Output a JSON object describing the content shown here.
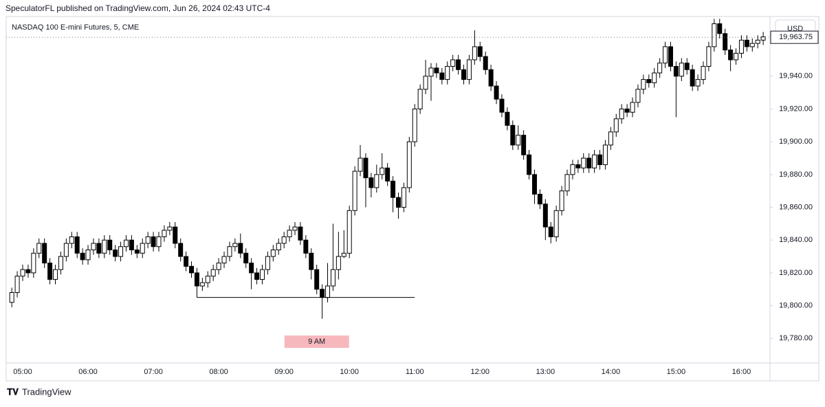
{
  "header": {
    "published": "SpeculatorFL published on TradingView.com, Jun 26, 2024 02:43 UTC-4",
    "brand": "TradingView"
  },
  "chart_data": {
    "type": "candlestick",
    "title": "NASDAQ 100 E-mini Futures, 5, CME",
    "currency": "USD",
    "categories": [
      null,
      null,
      "05:00",
      null,
      null,
      null,
      null,
      null,
      null,
      null,
      null,
      null,
      null,
      null,
      "06:00",
      null,
      null,
      null,
      null,
      null,
      null,
      null,
      null,
      null,
      null,
      null,
      "07:00",
      null,
      null,
      null,
      null,
      null,
      null,
      null,
      null,
      null,
      null,
      null,
      "08:00",
      null,
      null,
      null,
      null,
      null,
      null,
      null,
      null,
      null,
      null,
      null,
      "09:00",
      null,
      null,
      null,
      null,
      null,
      null,
      null,
      null,
      null,
      null,
      null,
      "10:00",
      null,
      null,
      null,
      null,
      null,
      null,
      null,
      null,
      null,
      null,
      null,
      "11:00",
      null,
      null,
      null,
      null,
      null,
      null,
      null,
      null,
      null,
      null,
      null,
      "12:00",
      null,
      null,
      null,
      null,
      null,
      null,
      null,
      null,
      null,
      null,
      null,
      "13:00",
      null,
      null,
      null,
      null,
      null,
      null,
      null,
      null,
      null,
      null,
      null,
      "14:00",
      null,
      null,
      null,
      null,
      null,
      null,
      null,
      null,
      null,
      null,
      null,
      "15:00",
      null,
      null,
      null,
      null,
      null,
      null,
      null,
      null,
      null,
      null,
      null,
      "16:00",
      null,
      null,
      null,
      null
    ],
    "open": [
      19802,
      19808,
      19818,
      19822,
      19820,
      19832,
      19838,
      19826,
      19816,
      19822,
      19830,
      19838,
      19842,
      19832,
      19828,
      19834,
      19838,
      19832,
      19840,
      19834,
      19830,
      19836,
      19840,
      19834,
      19832,
      19838,
      19842,
      19836,
      19842,
      19846,
      19848,
      19838,
      19830,
      19824,
      19820,
      19812,
      19814,
      19818,
      19822,
      19826,
      19830,
      19836,
      19838,
      19832,
      19826,
      19820,
      19816,
      19822,
      19830,
      19834,
      19838,
      19842,
      19846,
      19848,
      19840,
      19832,
      19822,
      19810,
      19805,
      19812,
      19822,
      19830,
      19832,
      19858,
      19882,
      19890,
      19878,
      19872,
      19880,
      19884,
      19876,
      19866,
      19860,
      19872,
      19900,
      19920,
      19932,
      19940,
      19945,
      19942,
      19938,
      19946,
      19950,
      19944,
      19938,
      19950,
      19958,
      19952,
      19944,
      19934,
      19926,
      19918,
      19910,
      19898,
      19904,
      19892,
      19880,
      19868,
      19862,
      19848,
      19842,
      19858,
      19870,
      19880,
      19886,
      19884,
      19890,
      19884,
      19892,
      19886,
      19898,
      19906,
      19914,
      19920,
      19918,
      19924,
      19932,
      19938,
      19936,
      19942,
      19948,
      19958,
      19946,
      19940,
      19948,
      19944,
      19934,
      19938,
      19946,
      19958,
      19972,
      19966,
      19956,
      19950,
      19954,
      19962,
      19958,
      19960,
      19962
    ],
    "high": [
      19811,
      19821,
      19825,
      19825,
      19835,
      19841,
      19841,
      19829,
      19825,
      19833,
      19841,
      19845,
      19845,
      19835,
      19837,
      19841,
      19841,
      19843,
      19843,
      19837,
      19839,
      19843,
      19843,
      19837,
      19841,
      19845,
      19845,
      19845,
      19849,
      19851,
      19851,
      19841,
      19833,
      19827,
      19823,
      19817,
      19821,
      19825,
      19829,
      19833,
      19839,
      19841,
      19844,
      19835,
      19829,
      19823,
      19825,
      19833,
      19837,
      19841,
      19845,
      19849,
      19851,
      19851,
      19843,
      19835,
      19825,
      19813,
      19826,
      19850,
      19845,
      19846,
      19861,
      19885,
      19898,
      19893,
      19881,
      19886,
      19893,
      19887,
      19879,
      19869,
      19875,
      19903,
      19923,
      19935,
      19950,
      19948,
      19948,
      19945,
      19949,
      19953,
      19953,
      19947,
      19953,
      19968,
      19961,
      19955,
      19947,
      19937,
      19929,
      19921,
      19913,
      19910,
      19907,
      19895,
      19883,
      19871,
      19865,
      19851,
      19861,
      19873,
      19883,
      19889,
      19889,
      19893,
      19893,
      19895,
      19895,
      19901,
      19909,
      19917,
      19923,
      19923,
      19927,
      19935,
      19941,
      19941,
      19945,
      19951,
      19961,
      19961,
      19949,
      19951,
      19951,
      19947,
      19941,
      19949,
      19961,
      19975,
      19975,
      19969,
      19959,
      19957,
      19965,
      19965,
      19963,
      19965,
      19967
    ],
    "low": [
      19799,
      19805,
      19815,
      19817,
      19817,
      19829,
      19823,
      19813,
      19813,
      19819,
      19827,
      19835,
      19829,
      19825,
      19825,
      19831,
      19829,
      19829,
      19831,
      19827,
      19827,
      19833,
      19831,
      19829,
      19829,
      19835,
      19833,
      19833,
      19839,
      19843,
      19835,
      19827,
      19821,
      19817,
      19805,
      19809,
      19811,
      19815,
      19819,
      19823,
      19827,
      19833,
      19829,
      19823,
      19810,
      19813,
      19813,
      19819,
      19827,
      19831,
      19835,
      19839,
      19843,
      19837,
      19829,
      19816,
      19807,
      19792,
      19802,
      19809,
      19816,
      19829,
      19829,
      19855,
      19879,
      19860,
      19866,
      19869,
      19877,
      19873,
      19857,
      19853,
      19857,
      19869,
      19897,
      19917,
      19929,
      19925,
      19939,
      19935,
      19935,
      19943,
      19941,
      19935,
      19935,
      19947,
      19949,
      19941,
      19931,
      19923,
      19915,
      19907,
      19895,
      19895,
      19889,
      19877,
      19862,
      19859,
      19840,
      19838,
      19839,
      19855,
      19867,
      19877,
      19881,
      19881,
      19881,
      19881,
      19883,
      19883,
      19895,
      19903,
      19911,
      19915,
      19915,
      19921,
      19929,
      19933,
      19933,
      19939,
      19945,
      19943,
      19915,
      19937,
      19941,
      19931,
      19931,
      19935,
      19943,
      19955,
      19963,
      19953,
      19943,
      19947,
      19951,
      19955,
      19955,
      19957,
      19959
    ],
    "close": [
      19808,
      19818,
      19822,
      19820,
      19832,
      19838,
      19826,
      19816,
      19822,
      19830,
      19838,
      19842,
      19832,
      19828,
      19834,
      19838,
      19832,
      19840,
      19834,
      19830,
      19836,
      19840,
      19834,
      19832,
      19838,
      19842,
      19836,
      19842,
      19846,
      19848,
      19838,
      19830,
      19824,
      19820,
      19812,
      19814,
      19818,
      19822,
      19826,
      19830,
      19836,
      19838,
      19832,
      19826,
      19820,
      19816,
      19822,
      19830,
      19834,
      19838,
      19842,
      19846,
      19848,
      19840,
      19832,
      19822,
      19810,
      19805,
      19812,
      19822,
      19830,
      19832,
      19858,
      19882,
      19890,
      19878,
      19872,
      19880,
      19884,
      19876,
      19866,
      19860,
      19872,
      19900,
      19920,
      19932,
      19940,
      19945,
      19942,
      19938,
      19946,
      19950,
      19944,
      19938,
      19950,
      19958,
      19952,
      19944,
      19934,
      19926,
      19918,
      19910,
      19898,
      19904,
      19892,
      19880,
      19868,
      19862,
      19848,
      19842,
      19858,
      19870,
      19880,
      19886,
      19884,
      19890,
      19884,
      19892,
      19886,
      19898,
      19906,
      19914,
      19920,
      19918,
      19924,
      19932,
      19938,
      19936,
      19942,
      19948,
      19958,
      19946,
      19940,
      19948,
      19944,
      19934,
      19938,
      19946,
      19958,
      19972,
      19966,
      19956,
      19950,
      19954,
      19962,
      19958,
      19960,
      19962,
      19964
    ],
    "up_color": "#ffffff",
    "down_color": "#000000",
    "wick_color": "#000000",
    "ylim": [
      19765,
      19976
    ],
    "yticks": [
      {
        "value": 19780,
        "label": "19,780.00"
      },
      {
        "value": 19800,
        "label": "19,800.00"
      },
      {
        "value": 19820,
        "label": "19,820.00"
      },
      {
        "value": 19840,
        "label": "19,840.00"
      },
      {
        "value": 19860,
        "label": "19,860.00"
      },
      {
        "value": 19880,
        "label": "19,880.00"
      },
      {
        "value": 19900,
        "label": "19,900.00"
      },
      {
        "value": 19920,
        "label": "19,920.00"
      },
      {
        "value": 19940,
        "label": "19,940.00"
      }
    ],
    "last_price": {
      "value": 19963.75,
      "label": "19,963.75"
    },
    "horizontal_line": 19805,
    "annotation": "9 AM",
    "grid": false
  }
}
